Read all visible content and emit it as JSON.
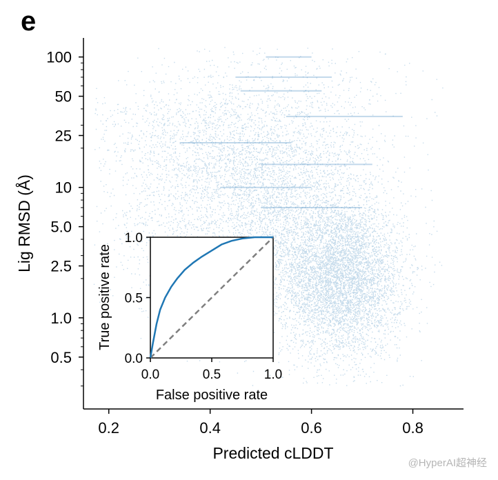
{
  "panel_label": "e",
  "watermark": "@HyperAI超神经",
  "chart_data": [
    {
      "type": "scatter",
      "xlabel": "Predicted cLDDT",
      "ylabel": "Lig RMSD (Å)",
      "xlim": [
        0.15,
        0.9
      ],
      "ylim": [
        0.2,
        140
      ],
      "yscale": "log",
      "x_ticks": [
        0.2,
        0.4,
        0.6,
        0.8
      ],
      "x_tick_labels": [
        "0.2",
        "0.4",
        "0.6",
        "0.8"
      ],
      "y_ticks": [
        0.5,
        1.0,
        2.5,
        5.0,
        10,
        25,
        50,
        100
      ],
      "y_tick_labels": [
        "0.5",
        "1.0",
        "2.5",
        "5.0",
        "10",
        "25",
        "50",
        "100"
      ],
      "color": "#4c8fc2",
      "point_density": {
        "description_free": true,
        "clusters": [
          {
            "x_center": 0.66,
            "y_center": 2.0,
            "x_spread": 0.06,
            "y_spread_log10": 0.3,
            "count": 5200
          },
          {
            "x_center": 0.55,
            "y_center": 5.0,
            "x_spread": 0.09,
            "y_spread_log10": 0.4,
            "count": 2600
          },
          {
            "x_center": 0.45,
            "y_center": 12,
            "x_spread": 0.12,
            "y_spread_log10": 0.35,
            "count": 1800
          },
          {
            "x_center": 0.38,
            "y_center": 25,
            "x_spread": 0.12,
            "y_spread_log10": 0.25,
            "count": 900
          },
          {
            "x_center": 0.58,
            "y_center": 40,
            "x_spread": 0.12,
            "y_spread_log10": 0.3,
            "count": 500
          },
          {
            "x_center": 0.32,
            "y_center": 3.5,
            "x_spread": 0.07,
            "y_spread_log10": 0.3,
            "count": 350
          }
        ],
        "streaks": [
          {
            "x_min": 0.51,
            "x_max": 0.6,
            "y": 100
          },
          {
            "x_min": 0.45,
            "x_max": 0.64,
            "y": 70
          },
          {
            "x_min": 0.46,
            "x_max": 0.62,
            "y": 55
          },
          {
            "x_min": 0.55,
            "x_max": 0.78,
            "y": 35
          },
          {
            "x_min": 0.34,
            "x_max": 0.56,
            "y": 22
          },
          {
            "x_min": 0.5,
            "x_max": 0.72,
            "y": 15
          },
          {
            "x_min": 0.42,
            "x_max": 0.6,
            "y": 10
          },
          {
            "x_min": 0.5,
            "x_max": 0.7,
            "y": 7
          }
        ]
      }
    },
    {
      "type": "line",
      "role": "inset",
      "xlabel": "False positive rate",
      "ylabel": "True positive rate",
      "xlim": [
        0,
        1
      ],
      "ylim": [
        0,
        1
      ],
      "x_tick_labels": [
        "0.0",
        "0.5",
        "1.0"
      ],
      "y_tick_labels": [
        "0.0",
        "0.5",
        "1.0"
      ],
      "series": [
        {
          "style": "solid",
          "color": "#1f77b4",
          "x": [
            0.0,
            0.02,
            0.05,
            0.08,
            0.12,
            0.17,
            0.22,
            0.28,
            0.35,
            0.42,
            0.5,
            0.58,
            0.66,
            0.75,
            0.85,
            1.0
          ],
          "y": [
            0.0,
            0.12,
            0.28,
            0.4,
            0.5,
            0.59,
            0.66,
            0.73,
            0.79,
            0.84,
            0.89,
            0.94,
            0.97,
            0.99,
            1.0,
            1.0
          ]
        },
        {
          "style": "dashed",
          "color": "#7f7f7f",
          "x": [
            0,
            1
          ],
          "y": [
            0,
            1
          ]
        }
      ]
    }
  ]
}
